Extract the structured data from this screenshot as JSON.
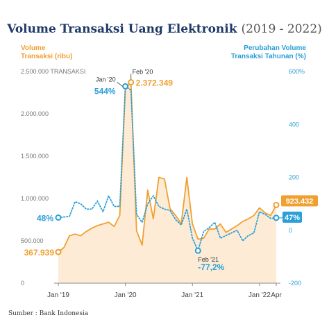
{
  "title_main": "Volume Transaksi Uang Elektronik",
  "title_years": "(2019 - 2022)",
  "source": "Sumber : Bank Indonesia",
  "colors": {
    "volume": "#f0a030",
    "growth": "#2a9fd8",
    "fill": "#fdebd6",
    "title": "#1f3a68"
  },
  "chart_data": {
    "type": "area",
    "left_axis": {
      "label_line1": "Volume",
      "label_line2": "Transaksi (ribu)",
      "unit_label": "TRANSAKSI",
      "ylim": [
        0,
        2500000
      ],
      "tick_labels": [
        "0",
        "500.000",
        "1.000.000",
        "1.500.000",
        "2.000.000",
        "2.500.000"
      ]
    },
    "right_axis": {
      "label_line1": "Perubahan Volume",
      "label_line2": "Transaksi Tahunan (%)",
      "ylim": [
        -200,
        600
      ],
      "tick_labels": [
        "-200",
        "0",
        "200",
        "400",
        "600%"
      ]
    },
    "x_tick_labels": [
      "Jan '19",
      "Jan '20",
      "Jan '21",
      "Jan '22",
      "Apr"
    ],
    "months": [
      "2019-01",
      "2019-02",
      "2019-03",
      "2019-04",
      "2019-05",
      "2019-06",
      "2019-07",
      "2019-08",
      "2019-09",
      "2019-10",
      "2019-11",
      "2019-12",
      "2020-01",
      "2020-02",
      "2020-03",
      "2020-04",
      "2020-05",
      "2020-06",
      "2020-07",
      "2020-08",
      "2020-09",
      "2020-10",
      "2020-11",
      "2020-12",
      "2021-01",
      "2021-02",
      "2021-03",
      "2021-04",
      "2021-05",
      "2021-06",
      "2021-07",
      "2021-08",
      "2021-09",
      "2021-10",
      "2021-11",
      "2021-12",
      "2022-01",
      "2022-02",
      "2022-03",
      "2022-04"
    ],
    "series": [
      {
        "name": "Volume Transaksi (ribu)",
        "axis": "left",
        "values": [
          367939,
          420000,
          560000,
          580000,
          560000,
          610000,
          650000,
          680000,
          700000,
          720000,
          670000,
          800000,
          2300000,
          2372349,
          620000,
          450000,
          1100000,
          760000,
          1250000,
          1230000,
          880000,
          800000,
          700000,
          1250000,
          700000,
          520000,
          530000,
          640000,
          640000,
          700000,
          600000,
          640000,
          680000,
          730000,
          760000,
          800000,
          890000,
          830000,
          800000,
          923432
        ]
      },
      {
        "name": "Perubahan Volume Transaksi Tahunan (%)",
        "axis": "right",
        "values": [
          48,
          50,
          53,
          108,
          100,
          80,
          80,
          110,
          70,
          130,
          90,
          90,
          544,
          530,
          60,
          30,
          100,
          130,
          90,
          80,
          75,
          40,
          20,
          80,
          -30,
          -77.2,
          -5,
          10,
          30,
          -30,
          -20,
          -10,
          0,
          -40,
          -20,
          -10,
          70,
          60,
          45,
          47
        ]
      }
    ],
    "annotations": [
      {
        "label": "367.939",
        "series": 0,
        "index": 0
      },
      {
        "label": "Feb '20",
        "value_label": "2.372.349",
        "series": 0,
        "index": 13
      },
      {
        "label": "923.432",
        "series": 0,
        "index": 39
      },
      {
        "label": "48%",
        "series": 1,
        "index": 0
      },
      {
        "label": "Jan '20",
        "value_label": "544%",
        "series": 1,
        "index": 12
      },
      {
        "label": "Feb '21",
        "value_label": "-77,2%",
        "series": 1,
        "index": 25
      },
      {
        "label": "47%",
        "series": 1,
        "index": 39
      }
    ]
  }
}
